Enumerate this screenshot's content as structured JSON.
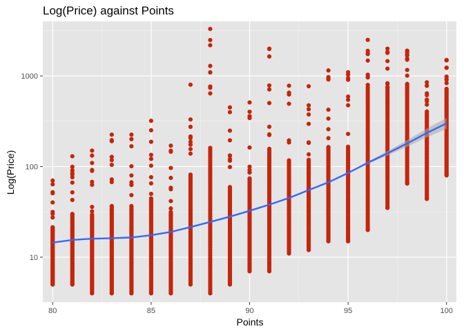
{
  "chart_data": {
    "type": "scatter",
    "title": "Log(Price) against Points",
    "xlabel": "Points",
    "ylabel": "Log(Price)",
    "x_scale": "linear",
    "y_scale": "log10",
    "xlim": [
      79.5,
      100.5
    ],
    "ylim": [
      3.2,
      4000
    ],
    "x_ticks": [
      80,
      85,
      90,
      95,
      100
    ],
    "x_tick_labels": [
      "80",
      "85",
      "90",
      "95",
      "100"
    ],
    "y_ticks": [
      10,
      100,
      1000
    ],
    "y_tick_labels": [
      "10",
      "100",
      "1000"
    ],
    "grid": true,
    "panel_background": "#e5e5e5",
    "point_color": "#c4260b",
    "smooth_color": "#3366ff",
    "ribbon_color": "#a8a8a8",
    "price_ranges": [
      {
        "points": 80,
        "min": 5,
        "max": 70
      },
      {
        "points": 81,
        "min": 5,
        "max": 130
      },
      {
        "points": 82,
        "min": 4,
        "max": 150
      },
      {
        "points": 83,
        "min": 4,
        "max": 225
      },
      {
        "points": 84,
        "min": 4,
        "max": 225
      },
      {
        "points": 85,
        "min": 4,
        "max": 320
      },
      {
        "points": 86,
        "min": 4,
        "max": 170
      },
      {
        "points": 87,
        "min": 5,
        "max": 800
      },
      {
        "points": 88,
        "min": 4,
        "max": 3300
      },
      {
        "points": 89,
        "min": 5,
        "max": 450
      },
      {
        "points": 90,
        "min": 7,
        "max": 510
      },
      {
        "points": 91,
        "min": 7,
        "max": 2000
      },
      {
        "points": 92,
        "min": 11,
        "max": 780
      },
      {
        "points": 93,
        "min": 12,
        "max": 770
      },
      {
        "points": 94,
        "min": 15,
        "max": 1150
      },
      {
        "points": 95,
        "min": 15,
        "max": 1100
      },
      {
        "points": 96,
        "min": 20,
        "max": 2500
      },
      {
        "points": 97,
        "min": 35,
        "max": 2000
      },
      {
        "points": 98,
        "min": 65,
        "max": 1900
      },
      {
        "points": 99,
        "min": 44,
        "max": 850
      },
      {
        "points": 100,
        "min": 80,
        "max": 1500
      }
    ],
    "smooth_line": {
      "x": [
        80,
        81,
        82,
        83,
        84,
        85,
        86,
        87,
        88,
        89,
        90,
        91,
        92,
        93,
        94,
        95,
        96,
        97,
        98,
        99,
        100
      ],
      "y": [
        14.5,
        15.5,
        16,
        16.2,
        16.5,
        17.5,
        19,
        21.5,
        24.5,
        28,
        32.5,
        38,
        45,
        55,
        67,
        85,
        110,
        140,
        180,
        235,
        300
      ]
    }
  }
}
